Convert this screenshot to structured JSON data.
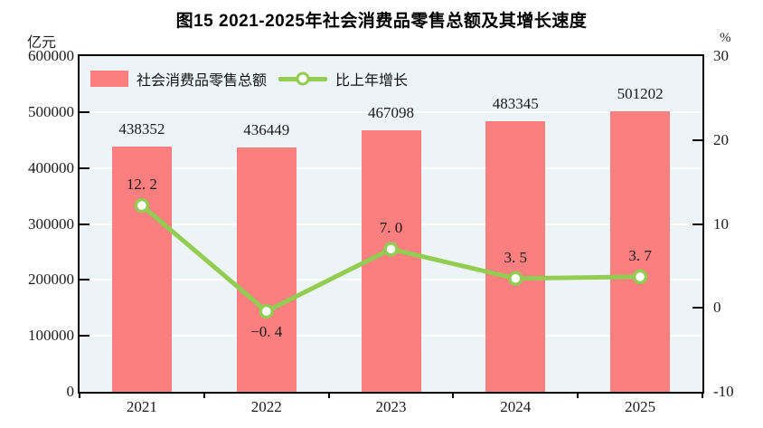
{
  "chart_data": {
    "type": "bar+line",
    "title": "图15  2021-2025年社会消费品零售总额及其增长速度",
    "categories": [
      "2021",
      "2022",
      "2023",
      "2024",
      "2025"
    ],
    "series": [
      {
        "name": "社会消费品零售总额",
        "type": "bar",
        "axis": "left",
        "values": [
          438352,
          436449,
          467098,
          483345,
          501202
        ],
        "color": "#fb7f7f"
      },
      {
        "name": "比上年增长",
        "type": "line",
        "axis": "right",
        "values": [
          12.2,
          -0.4,
          7.0,
          3.5,
          3.7
        ],
        "color": "#93cc52",
        "marker": "circle-white-fill"
      }
    ],
    "left_axis": {
      "label": "亿元",
      "min": 0,
      "max": 600000,
      "step": 100000,
      "ticks": [
        "0",
        "100000",
        "200000",
        "300000",
        "400000",
        "500000",
        "600000"
      ]
    },
    "right_axis": {
      "label": "%",
      "min": -10,
      "max": 30,
      "step": 10,
      "ticks": [
        "-10",
        "0",
        "10",
        "20",
        "30"
      ]
    },
    "grid": true,
    "gridline_color": "#ffffff",
    "plot_background": "#edf4f8",
    "legend_position": "top-left-inside"
  }
}
